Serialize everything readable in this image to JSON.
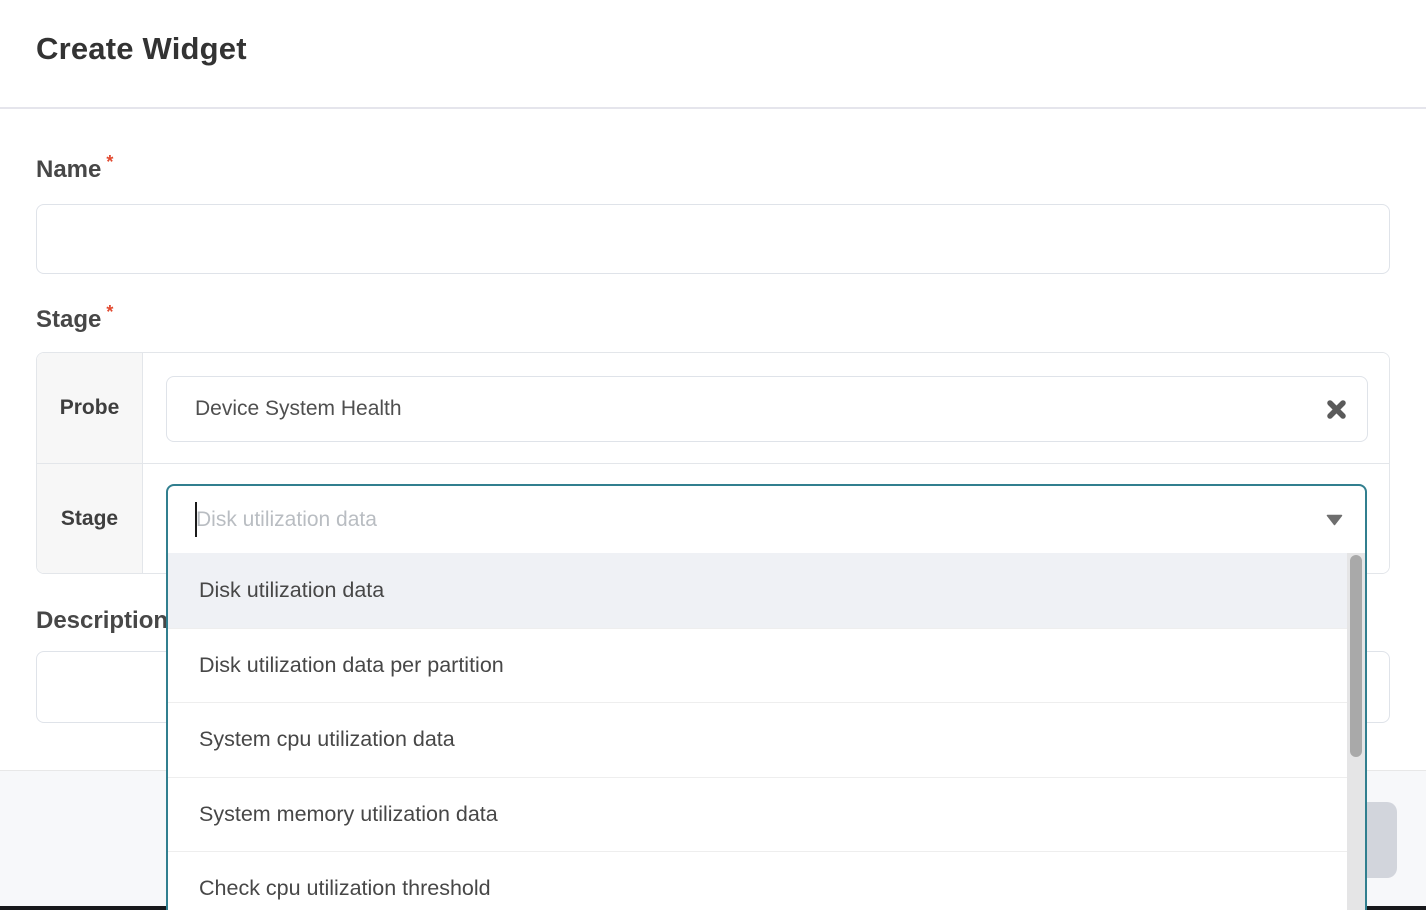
{
  "header": {
    "title": "Create Widget"
  },
  "form": {
    "name": {
      "label": "Name",
      "required_marker": "*",
      "value": ""
    },
    "stage": {
      "label": "Stage",
      "required_marker": "*",
      "probe": {
        "row_label": "Probe",
        "value": "Device System Health"
      },
      "stage_select": {
        "row_label": "Stage",
        "placeholder": "Disk utilization data",
        "value": "",
        "highlighted_index": 0,
        "options": [
          "Disk utilization data",
          "Disk utilization data per partition",
          "System cpu utilization data",
          "System memory utilization data",
          "Check cpu utilization threshold"
        ]
      }
    },
    "description": {
      "label": "Description",
      "value": ""
    }
  },
  "icons": {
    "clear": "clear-x-icon",
    "dropdown": "caret-down-icon"
  },
  "colors": {
    "accent_teal": "#317F8F",
    "required_red": "#E2492F",
    "option_highlight_bg": "#EFF1F5",
    "footer_bg": "#F7F8FA",
    "disabled_button": "#D2D5DC"
  }
}
